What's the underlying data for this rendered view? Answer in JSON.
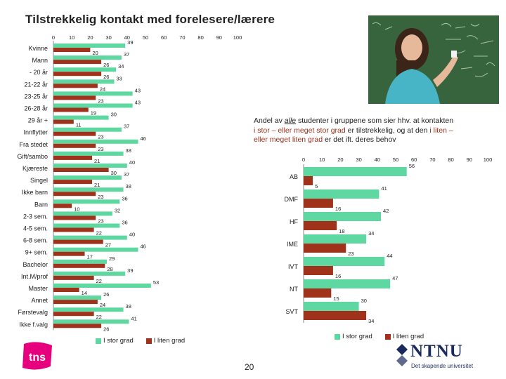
{
  "title": "Tilstrekkelig kontakt med forelesere/lærere",
  "annotation": {
    "line1_pre": "Andel av ",
    "line1_em": "alle",
    "line1_post": " studenter i gruppene som sier  hhv. at kontakten",
    "line2_red1": "i stor – eller meget stor grad",
    "line2_mid": " er tilstrekkelig, og at den ",
    "line2_red2": "i liten –",
    "line3_red": "eller meget liten grad",
    "line3_post": " er det ift. deres behov"
  },
  "colors": {
    "green": "#5ed8a0",
    "red": "#a0321c",
    "axis": "#888888"
  },
  "legend": {
    "green_label": "I stor grad",
    "red_label": "I liten grad"
  },
  "page_number": "20",
  "logos": {
    "tns": "tns",
    "ntnu_name": "NTNU",
    "ntnu_tagline": "Det skapende universitet"
  },
  "photo": {
    "icon": "student-at-blackboard-photo"
  },
  "chart_data": [
    {
      "type": "bar",
      "orientation": "horizontal",
      "title": "Tilstrekkelig kontakt med forelesere/lærere",
      "xlim": [
        0,
        100
      ],
      "ticks": [
        0,
        10,
        20,
        30,
        40,
        50,
        60,
        70,
        80,
        90,
        100
      ],
      "categories": [
        "Kvinne",
        "Mann",
        "- 20 år",
        "21-22 år",
        "23-25 år",
        "26-28 år",
        "29 år +",
        "Innflytter",
        "Fra stedet",
        "Gift/sambo",
        "Kjæreste",
        "Singel",
        "Ikke barn",
        "Barn",
        "2-3 sem.",
        "4-5 sem.",
        "6-8 sem.",
        "9+ sem.",
        "Bachelor",
        "Int.M/prof",
        "Master",
        "Annet",
        "Førstevalg",
        "Ikke f.valg"
      ],
      "series": [
        {
          "name": "I stor grad",
          "values": [
            39,
            37,
            34,
            33,
            43,
            43,
            30,
            37,
            46,
            38,
            40,
            37,
            38,
            36,
            32,
            36,
            40,
            46,
            29,
            39,
            53,
            26,
            38,
            41
          ]
        },
        {
          "name": "I liten grad",
          "values": [
            20,
            26,
            26,
            24,
            23,
            19,
            11,
            23,
            23,
            21,
            30,
            21,
            23,
            10,
            23,
            22,
            27,
            17,
            28,
            22,
            14,
            24,
            22,
            26
          ]
        }
      ]
    },
    {
      "type": "bar",
      "orientation": "horizontal",
      "title": "Andel av alle studenter i gruppene som sier hhv. at kontakten i stor – eller meget stor grad er tilstrekkelig, og at den i liten – eller meget liten grad er det ift. deres behov",
      "xlim": [
        0,
        100
      ],
      "ticks": [
        0,
        10,
        20,
        30,
        40,
        50,
        60,
        70,
        80,
        90,
        100
      ],
      "categories": [
        "AB",
        "DMF",
        "HF",
        "IME",
        "IVT",
        "NT",
        "SVT"
      ],
      "series": [
        {
          "name": "I stor grad",
          "values": [
            56,
            41,
            42,
            34,
            44,
            47,
            30
          ]
        },
        {
          "name": "I liten grad",
          "values": [
            5,
            16,
            18,
            23,
            16,
            15,
            34
          ]
        }
      ]
    }
  ]
}
